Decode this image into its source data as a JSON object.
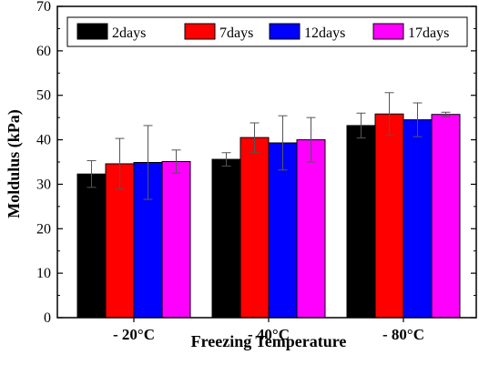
{
  "chart_data": {
    "type": "bar",
    "categories": [
      "- 20°C",
      "- 40°C",
      "- 80°C"
    ],
    "xlabel": "Freezing Temperature",
    "ylabel": "Moldulus  (kPa)",
    "ylim": [
      0,
      70
    ],
    "yticks": [
      "0",
      "10",
      "20",
      "30",
      "40",
      "50",
      "60",
      "70"
    ],
    "legend_position": "top",
    "grid": false,
    "series": [
      {
        "name": "2days",
        "color": "#000000",
        "values": [
          32.3,
          35.6,
          43.2
        ],
        "errors": [
          3.0,
          1.5,
          2.8
        ]
      },
      {
        "name": "7days",
        "color": "#ff0000",
        "values": [
          34.6,
          40.5,
          45.8
        ],
        "errors": [
          5.7,
          3.3,
          4.8
        ]
      },
      {
        "name": "12days",
        "color": "#0000ff",
        "values": [
          34.9,
          39.3,
          44.5
        ],
        "errors": [
          8.3,
          6.1,
          3.8
        ]
      },
      {
        "name": "17days",
        "color": "#ff00ff",
        "values": [
          35.1,
          40.0,
          45.7
        ],
        "errors": [
          2.6,
          5.0,
          0.5
        ]
      }
    ]
  }
}
